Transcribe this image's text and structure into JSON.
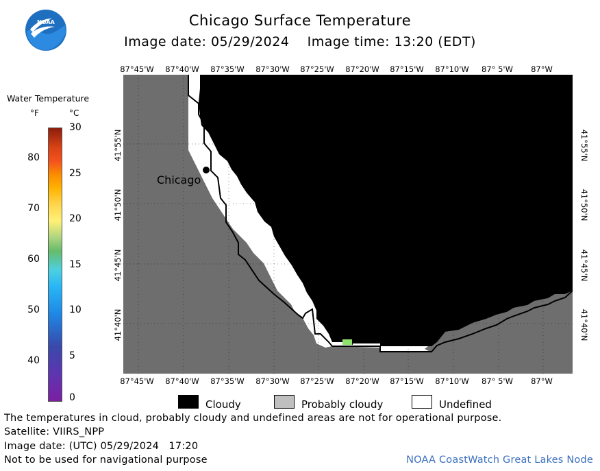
{
  "header": {
    "title": "Chicago Surface Temperature",
    "subtitle": "Image date: 05/29/2024    Image time: 13:20 (EDT)"
  },
  "logo": {
    "text": "NOAA",
    "icon": "noaa-logo-icon"
  },
  "legend": {
    "title": "Water Temperature",
    "unit_f": "°F",
    "unit_c": "°C",
    "ticks_f": [
      "80",
      "70",
      "60",
      "50",
      "40"
    ],
    "ticks_c": [
      "30",
      "25",
      "20",
      "15",
      "10",
      "5",
      "0"
    ]
  },
  "map": {
    "lon_labels": [
      "87°45'W",
      "87°40'W",
      "87°35'W",
      "87°30'W",
      "87°25'W",
      "87°20'W",
      "87°15'W",
      "87°10'W",
      "87° 5'W",
      "87°W"
    ],
    "lat_labels": [
      "41°55'N",
      "41°50'N",
      "41°45'N",
      "41°40'N"
    ],
    "city_label": "Chicago",
    "colors": {
      "land": "#6e6e6e",
      "cloudy": "#000000",
      "probably_cloudy": "#bfbfbf",
      "undefined": "#ffffff",
      "water_warm": "#8ee26e"
    }
  },
  "key": {
    "cloudy": "Cloudy",
    "probably_cloudy": "Probably cloudy",
    "undefined": "Undefined"
  },
  "footer": {
    "disclaimer": "The temperatures in cloud, probably cloudy and undefined areas are not for operational purpose.",
    "satellite": "Satellite: VIIRS_NPP",
    "utc_date": "Image date: (UTC) 05/29/2024   17:20",
    "nav_warning": "Not to be used for navigational purpose",
    "credit": "NOAA CoastWatch Great Lakes Node"
  }
}
